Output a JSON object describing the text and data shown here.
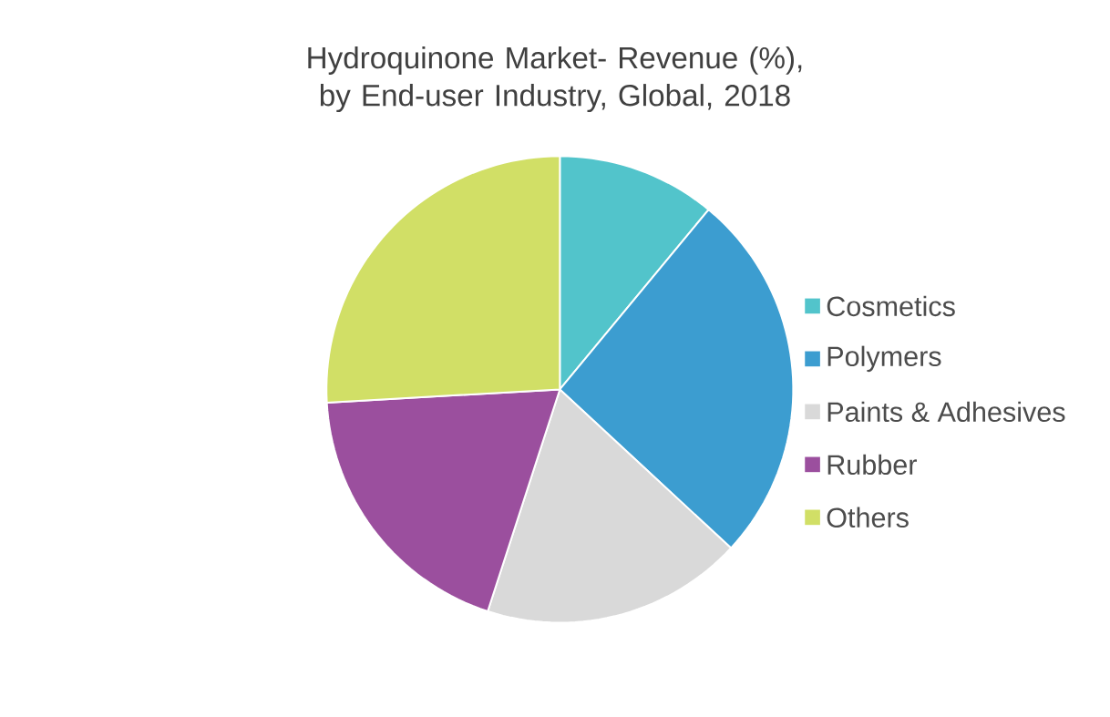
{
  "chart_data": {
    "type": "pie",
    "title": "Hydroquinone Market- Revenue (%), by End-user Industry, Global, 2018",
    "categories": [
      "Cosmetics",
      "Polymers",
      "Paints & Adhesives",
      "Rubber",
      "Others"
    ],
    "values": [
      11,
      25.9,
      18.1,
      19.1,
      25.9
    ],
    "colors": [
      "#52c4cb",
      "#3c9dd0",
      "#d9d9d9",
      "#9b4f9e",
      "#d1df66"
    ],
    "legend": "right"
  }
}
